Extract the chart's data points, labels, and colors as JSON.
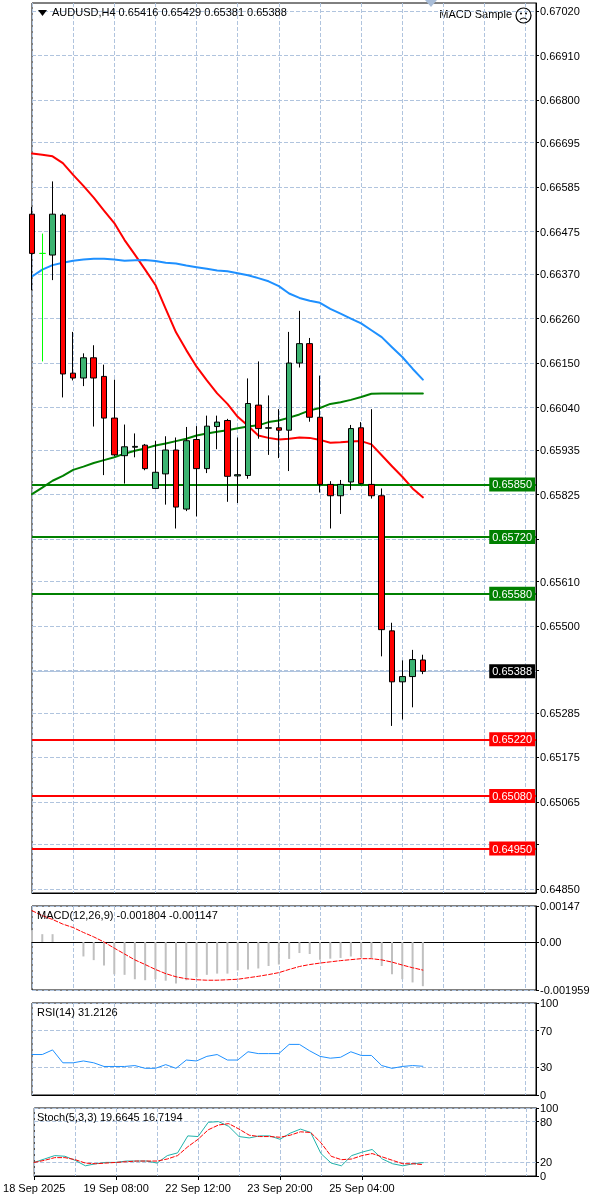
{
  "chart_data": [
    {
      "type": "candlestick",
      "title": "AUDUSD,H4 0.65416 0.65429 0.65381 0.65388",
      "annotations": [
        "MACD Sample"
      ],
      "categories": [
        null,
        null,
        null,
        null,
        null,
        null,
        null,
        null,
        null,
        null,
        null,
        null,
        null,
        null,
        null,
        null,
        null,
        null,
        null,
        null,
        null,
        null,
        null,
        null,
        null,
        null,
        null,
        null,
        null,
        null,
        null,
        null,
        null,
        null,
        null,
        null,
        null,
        null,
        null
      ],
      "ohlc": [
        [
          0.66518,
          0.66536,
          0.6633,
          0.66421
        ],
        [
          0.66421,
          0.6647,
          0.66154,
          0.66421
        ],
        [
          0.66417,
          0.66599,
          0.66355,
          0.66518
        ],
        [
          0.66516,
          0.6652,
          0.66065,
          0.66123
        ],
        [
          0.66125,
          0.66227,
          0.66107,
          0.66113
        ],
        [
          0.66113,
          0.66174,
          0.66093,
          0.66163
        ],
        [
          0.66163,
          0.66194,
          0.65993,
          0.66113
        ],
        [
          0.66117,
          0.66146,
          0.65873,
          0.66014
        ],
        [
          0.66014,
          0.66109,
          0.6592,
          0.65923
        ],
        [
          0.65921,
          0.65998,
          0.65852,
          0.65943
        ],
        [
          0.65942,
          0.65976,
          0.65917,
          0.65944
        ],
        [
          0.65947,
          0.6595,
          0.65885,
          0.65889
        ],
        [
          0.6584,
          0.65958,
          0.6584,
          0.6588
        ],
        [
          0.65876,
          0.65969,
          0.658,
          0.65935
        ],
        [
          0.65935,
          0.65966,
          0.65741,
          0.65794
        ],
        [
          0.65789,
          0.65992,
          0.65784,
          0.65958
        ],
        [
          0.65961,
          0.65994,
          0.65771,
          0.65889
        ],
        [
          0.65889,
          0.6602,
          0.65878,
          0.65994
        ],
        [
          0.65993,
          0.6602,
          0.65937,
          0.66004
        ],
        [
          0.66008,
          0.66012,
          0.65807,
          0.6587
        ],
        [
          0.65871,
          0.65966,
          0.65804,
          0.65874
        ],
        [
          0.65872,
          0.66112,
          0.65864,
          0.6605
        ],
        [
          0.66046,
          0.66154,
          0.65963,
          0.65988
        ],
        [
          0.65989,
          0.6607,
          0.65923,
          0.6599
        ],
        [
          0.6599,
          0.66036,
          0.65915,
          0.65984
        ],
        [
          0.65984,
          0.66227,
          0.65883,
          0.6615
        ],
        [
          0.6615,
          0.66279,
          0.66139,
          0.66198
        ],
        [
          0.66198,
          0.66212,
          0.66005,
          0.66016
        ],
        [
          0.66016,
          0.66119,
          0.6583,
          0.6585
        ],
        [
          0.6585,
          0.65858,
          0.65741,
          0.65822
        ],
        [
          0.65822,
          0.65861,
          0.65777,
          0.6585
        ],
        [
          0.65856,
          0.65997,
          0.65836,
          0.65988
        ],
        [
          0.6599,
          0.66004,
          0.6585,
          0.65852
        ],
        [
          0.6585,
          0.66036,
          0.65815,
          0.65822
        ],
        [
          0.65822,
          0.6584,
          0.65425,
          0.65491
        ],
        [
          0.65488,
          0.65508,
          0.65253,
          0.65362
        ],
        [
          0.65362,
          0.65415,
          0.65269,
          0.65375
        ],
        [
          0.65375,
          0.65441,
          0.65299,
          0.65417
        ],
        [
          0.65416,
          0.65429,
          0.65381,
          0.65388
        ]
      ],
      "colors": [
        "#ff0000",
        "#00ff00",
        "#3cb371",
        "#ff0000",
        "#ff0000",
        "#3cb371",
        "#ff0000",
        "#ff0000",
        "#ff0000",
        "#3cb371",
        "#3cb371",
        "#ff0000",
        "#3cb371",
        "#3cb371",
        "#ff0000",
        "#3cb371",
        "#ff0000",
        "#3cb371",
        "#3cb371",
        "#ff0000",
        "#3cb371",
        "#3cb371",
        "#ff0000",
        "#3cb371",
        "#ff0000",
        "#3cb371",
        "#3cb371",
        "#ff0000",
        "#ff0000",
        "#ff0000",
        "#3cb371",
        "#3cb371",
        "#ff0000",
        "#ff0000",
        "#ff0000",
        "#ff0000",
        "#3cb371",
        "#3cb371",
        "#ff0000"
      ],
      "series": [
        {
          "type": "line",
          "color": "#ff0000",
          "values": [
            0.66668,
            0.66665,
            0.66661,
            0.66644,
            0.66615,
            0.66588,
            0.66559,
            0.66527,
            0.66496,
            0.66454,
            0.66418,
            0.66381,
            0.66343,
            0.66284,
            0.66226,
            0.66182,
            0.66141,
            0.66107,
            0.66075,
            0.66049,
            0.66017,
            0.65995,
            0.65971,
            0.65965,
            0.65961,
            0.65963,
            0.65966,
            0.65965,
            0.6596,
            0.65953,
            0.65954,
            0.65956,
            0.65957,
            0.65949,
            0.65922,
            0.65895,
            0.65869,
            0.6584,
            0.65818
          ]
        },
        {
          "type": "line",
          "color": "#1e90ff",
          "values": [
            0.66364,
            0.66381,
            0.66392,
            0.66398,
            0.66403,
            0.66406,
            0.66408,
            0.66408,
            0.66406,
            0.66403,
            0.66404,
            0.66405,
            0.66402,
            0.66398,
            0.66396,
            0.66391,
            0.66387,
            0.66383,
            0.66379,
            0.66377,
            0.66372,
            0.66367,
            0.6636,
            0.66352,
            0.6634,
            0.66322,
            0.66311,
            0.66304,
            0.66299,
            0.66284,
            0.66272,
            0.6626,
            0.66248,
            0.66231,
            0.66214,
            0.66189,
            0.66165,
            0.66136,
            0.66109
          ]
        },
        {
          "type": "line",
          "color": "#008000",
          "values": [
            0.65826,
            0.65842,
            0.65859,
            0.65871,
            0.65886,
            0.65894,
            0.65903,
            0.6591,
            0.65917,
            0.65926,
            0.65933,
            0.65939,
            0.65946,
            0.65951,
            0.65957,
            0.65963,
            0.65971,
            0.65976,
            0.6598,
            0.65984,
            0.65989,
            0.65993,
            0.65996,
            0.66004,
            0.66008,
            0.66015,
            0.66023,
            0.66033,
            0.66039,
            0.66049,
            0.66053,
            0.66059,
            0.66066,
            0.66074,
            0.66075,
            0.66075,
            0.66075,
            0.66075,
            0.66075
          ]
        }
      ],
      "ylim": [
        0.6484,
        0.6704
      ],
      "yticks": [
        {
          "value": 0.6702,
          "label": "0.67020"
        },
        {
          "value": 0.6691,
          "label": "0.66910"
        },
        {
          "value": 0.668,
          "label": "0.66800"
        },
        0.66695,
        0.66585,
        0.66475,
        {
          "value": 0.6637,
          "label": "0.66370"
        },
        {
          "value": 0.6626,
          "label": "0.66260"
        },
        {
          "value": 0.6615,
          "label": "0.66150"
        },
        {
          "value": 0.6604,
          "label": "0.66040"
        },
        0.65935,
        0.65825,
        {
          "value": 0.65715,
          "label": null
        },
        {
          "value": 0.6561,
          "label": "0.65610"
        },
        {
          "value": 0.655,
          "label": "0.65500"
        },
        {
          "value": 0.6539,
          "label": null
        },
        0.65285,
        0.65175,
        0.65065,
        {
          "value": 0.6496,
          "label": null
        },
        {
          "value": 0.6485,
          "label": "0.64850"
        }
      ],
      "ref_lines": [
        {
          "axis": "y",
          "value": 0.6585,
          "label": "0.65850",
          "color": "#008000"
        },
        {
          "axis": "y",
          "value": 0.6572,
          "label": "0.65720",
          "color": "#008000"
        },
        {
          "axis": "y",
          "value": 0.6558,
          "label": "0.65580",
          "color": "#008000"
        },
        {
          "axis": "y",
          "value": 0.65388,
          "label": "0.65388"
        },
        {
          "axis": "y",
          "value": 0.6522,
          "label": "0.65220",
          "color": "#ff0000"
        },
        {
          "axis": "y",
          "value": 0.6508,
          "label": "0.65080",
          "color": "#ff0000"
        },
        {
          "axis": "y",
          "value": 0.6495,
          "label": "0.64950",
          "color": "#ff0000"
        }
      ],
      "grid": true,
      "marker": "none",
      "tick_labels": "y"
    },
    {
      "type": "bar",
      "title": "MACD(12,26,9) -0.001804 -0.001147",
      "categories": [
        null,
        null,
        null,
        null,
        null,
        null,
        null,
        null,
        null,
        null,
        null,
        null,
        null,
        null,
        null,
        null,
        null,
        null,
        null,
        null,
        null,
        null,
        null,
        null,
        null,
        null,
        null,
        null,
        null,
        null,
        null,
        null,
        null,
        null,
        null,
        null,
        null,
        null,
        null
      ],
      "series": [
        {
          "type": "bar",
          "color": "#c0c0c0",
          "values": [
            0.00048,
            0.00032,
            0.00032,
            0,
            0,
            -0.00059,
            -0.00074,
            -0.00096,
            -0.00132,
            -0.00134,
            -0.00152,
            -0.00156,
            -0.00152,
            -0.00158,
            -0.00169,
            -0.00156,
            -0.00145,
            -0.00134,
            -0.00129,
            -0.00129,
            -0.00116,
            -0.00112,
            -0.00108,
            -0.00098,
            -0.00092,
            -0.00069,
            -0.00045,
            -0.00049,
            -0.00072,
            -0.00068,
            -0.00065,
            -0.00059,
            -0.00063,
            -0.00065,
            -0.00098,
            -0.00132,
            -0.00152,
            -0.00165,
            -0.001804
          ]
        },
        {
          "type": "line",
          "color": "#ff0000",
          "line_style": "dashed",
          "values": [
            0.00128,
            0.00108,
            0.00092,
            0.00073,
            0.00059,
            0.00039,
            0.00021,
            0,
            -0.00025,
            -0.00049,
            -0.00073,
            -0.00092,
            -0.00112,
            -0.00129,
            -0.00142,
            -0.0015,
            -0.00154,
            -0.00156,
            -0.00156,
            -0.00154,
            -0.00152,
            -0.00146,
            -0.0014,
            -0.00133,
            -0.00125,
            -0.00112,
            -0.001,
            -0.00092,
            -0.00086,
            -0.00081,
            -0.00076,
            -0.00072,
            -0.00068,
            -0.00068,
            -0.00073,
            -0.00082,
            -0.00094,
            -0.00105,
            -0.001147
          ]
        }
      ],
      "ylim": [
        -0.001959,
        0.00147
      ],
      "yticks": [
        0.00147,
        {
          "value": 0,
          "label": "0.00"
        },
        -0.001959
      ],
      "grid": true,
      "marker": "none",
      "tick_labels": "y"
    },
    {
      "type": "line",
      "title": "RSI(14) 31.2126",
      "categories": [
        null,
        null,
        null,
        null,
        null,
        null,
        null,
        null,
        null,
        null,
        null,
        null,
        null,
        null,
        null,
        null,
        null,
        null,
        null,
        null,
        null,
        null,
        null,
        null,
        null,
        null,
        null,
        null,
        null,
        null,
        null,
        null,
        null,
        null,
        null,
        null,
        null,
        null,
        null
      ],
      "color": "#1e90ff",
      "values": [
        44,
        44,
        49,
        35,
        35,
        37,
        35,
        31,
        31,
        31,
        32,
        29,
        29,
        33,
        29,
        38,
        37,
        42,
        44,
        38,
        38,
        47,
        45,
        45,
        45,
        55,
        55,
        48,
        42,
        40,
        41,
        47,
        43,
        43,
        32,
        29,
        31,
        32,
        31.2126
      ],
      "ylim": [
        0,
        100
      ],
      "yticks": [
        100,
        70,
        30,
        0
      ],
      "grid": true,
      "marker": "none",
      "tick_labels": "y"
    },
    {
      "type": "line",
      "title": "Stoch(5,3,3) 19.6645 16.7194",
      "categories": [
        "18 Sep 2025",
        null,
        null,
        null,
        null,
        null,
        null,
        null,
        "19 Sep 08:00",
        null,
        null,
        null,
        null,
        null,
        null,
        null,
        "22 Sep 12:00",
        null,
        null,
        null,
        null,
        null,
        null,
        null,
        "23 Sep 20:00",
        null,
        null,
        null,
        null,
        null,
        null,
        null,
        "25 Sep 04:00",
        null,
        null,
        null,
        null,
        null,
        null
      ],
      "series": [
        {
          "color": "#20b2aa",
          "values": [
            20,
            25,
            30,
            29,
            23,
            15,
            18,
            20,
            20,
            22,
            22,
            22,
            19,
            30,
            34,
            59,
            58,
            79,
            80,
            73,
            58,
            56,
            59,
            59,
            54,
            63,
            69,
            64,
            33,
            19,
            15,
            30,
            35,
            39,
            25,
            18,
            15,
            18,
            19.6645
          ]
        },
        {
          "color": "#ff0000",
          "line_style": "dashed",
          "values": [
            20,
            23,
            27,
            27,
            24,
            19,
            18,
            19,
            20,
            21,
            22,
            22,
            22,
            25,
            30,
            43,
            54,
            68,
            75,
            77,
            69,
            60,
            58,
            58,
            57,
            60,
            65,
            64,
            49,
            29,
            24,
            25,
            30,
            33,
            28,
            23,
            18,
            18,
            16.7194
          ]
        }
      ],
      "ylim": [
        0,
        100
      ],
      "yticks": [
        100,
        80,
        20,
        0
      ],
      "grid": true,
      "marker": "none"
    }
  ]
}
